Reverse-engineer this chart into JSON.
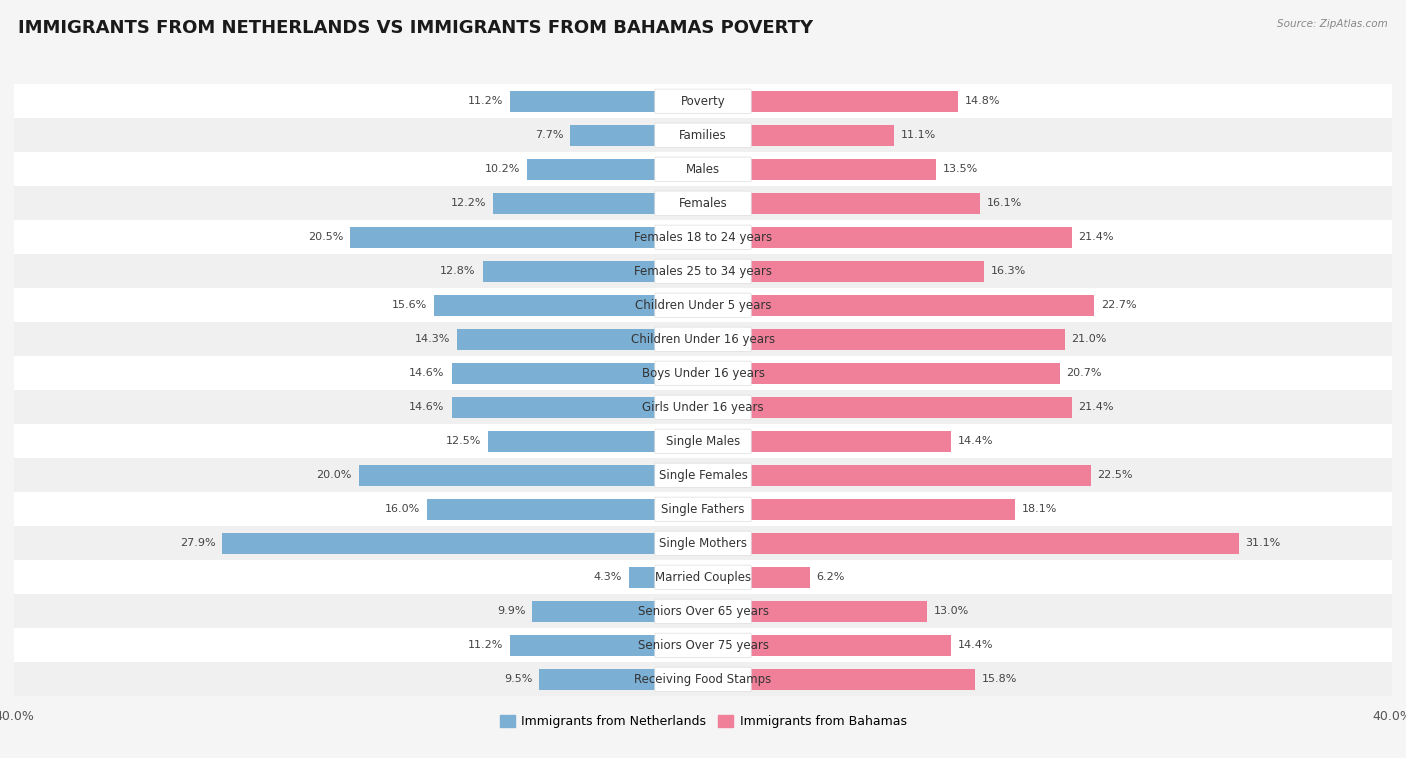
{
  "title": "IMMIGRANTS FROM NETHERLANDS VS IMMIGRANTS FROM BAHAMAS POVERTY",
  "source": "Source: ZipAtlas.com",
  "categories": [
    "Poverty",
    "Families",
    "Males",
    "Females",
    "Females 18 to 24 years",
    "Females 25 to 34 years",
    "Children Under 5 years",
    "Children Under 16 years",
    "Boys Under 16 years",
    "Girls Under 16 years",
    "Single Males",
    "Single Females",
    "Single Fathers",
    "Single Mothers",
    "Married Couples",
    "Seniors Over 65 years",
    "Seniors Over 75 years",
    "Receiving Food Stamps"
  ],
  "netherlands_values": [
    11.2,
    7.7,
    10.2,
    12.2,
    20.5,
    12.8,
    15.6,
    14.3,
    14.6,
    14.6,
    12.5,
    20.0,
    16.0,
    27.9,
    4.3,
    9.9,
    11.2,
    9.5
  ],
  "bahamas_values": [
    14.8,
    11.1,
    13.5,
    16.1,
    21.4,
    16.3,
    22.7,
    21.0,
    20.7,
    21.4,
    14.4,
    22.5,
    18.1,
    31.1,
    6.2,
    13.0,
    14.4,
    15.8
  ],
  "netherlands_color": "#7bafd4",
  "bahamas_color": "#f08099",
  "netherlands_label": "Immigrants from Netherlands",
  "bahamas_label": "Immigrants from Bahamas",
  "axis_limit": 40.0,
  "bg_odd": "#f0f0f0",
  "bg_even": "#ffffff",
  "title_fontsize": 13,
  "label_fontsize": 8.5,
  "value_fontsize": 8.0
}
